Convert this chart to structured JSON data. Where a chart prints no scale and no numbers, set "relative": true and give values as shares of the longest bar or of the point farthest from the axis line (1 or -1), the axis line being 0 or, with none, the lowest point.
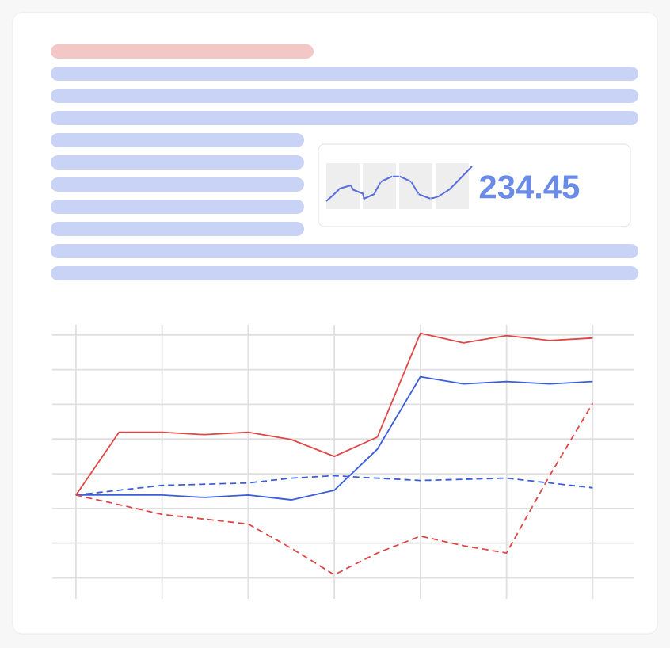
{
  "chart_data": {
    "type": "line",
    "relative": true,
    "grid": true,
    "marker": "none",
    "line_style": "solid",
    "categories": [
      null,
      null,
      null,
      null,
      null,
      null,
      null,
      null,
      null,
      null,
      null,
      null,
      null
    ],
    "series": [
      {
        "color": "#e04848",
        "values": [
          0.33,
          0.59,
          0.59,
          0.58,
          0.59,
          0.56,
          0.49,
          0.57,
          1,
          0.96,
          0.99,
          0.97,
          0.98
        ]
      },
      {
        "color": "#3b5fdc",
        "values": [
          0.33,
          0.33,
          0.33,
          0.32,
          0.33,
          0.31,
          0.35,
          0.52,
          0.82,
          0.79,
          0.8,
          0.79,
          0.8
        ]
      },
      {
        "color": "#3b5fdc",
        "line_style": "dashed",
        "values": [
          0.33,
          0.35,
          0.37,
          0.375,
          0.38,
          0.4,
          0.41,
          0.4,
          0.39,
          0.395,
          0.4,
          0.38,
          0.36
        ]
      },
      {
        "color": "#e04848",
        "line_style": "dashed",
        "values": [
          0.33,
          0.29,
          0.25,
          0.23,
          0.21,
          0.11,
          0,
          0.09,
          0.16,
          0.12,
          0.09,
          0.41,
          0.71
        ]
      }
    ],
    "annotations": [
      "234.45"
    ]
  }
}
